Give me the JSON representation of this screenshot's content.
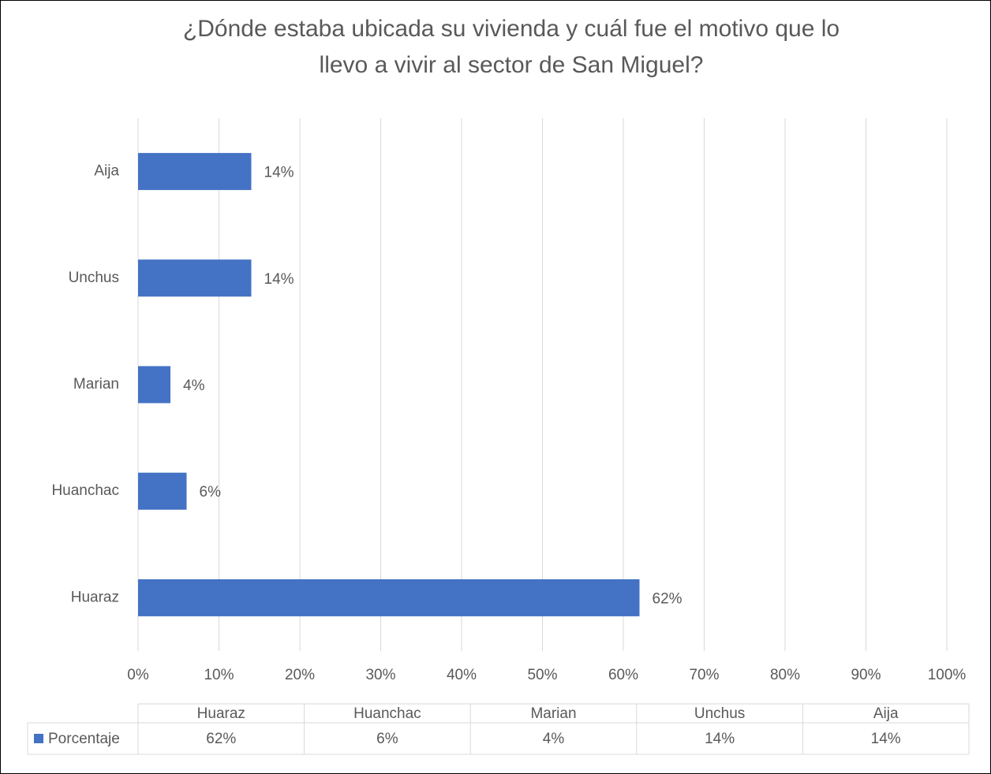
{
  "chart_data": {
    "type": "bar",
    "orientation": "horizontal",
    "title": [
      "¿Dónde estaba ubicada su vivienda y cuál fue el motivo que lo",
      "llevo a vivir al sector de San Miguel?"
    ],
    "categories": [
      "Huaraz",
      "Huanchac",
      "Marian",
      "Unchus",
      "Aija"
    ],
    "series": [
      {
        "name": "Porcentaje",
        "color": "#4472c4",
        "values": [
          62,
          6,
          4,
          14,
          14
        ],
        "value_labels": [
          "62%",
          "6%",
          "4%",
          "14%",
          "14%"
        ]
      }
    ],
    "xlim": [
      0,
      100
    ],
    "xticks": [
      {
        "value": 0,
        "label": "0%"
      },
      {
        "value": 10,
        "label": "10%"
      },
      {
        "value": 20,
        "label": "20%"
      },
      {
        "value": 30,
        "label": "30%"
      },
      {
        "value": 40,
        "label": "40%"
      },
      {
        "value": 50,
        "label": "50%"
      },
      {
        "value": 60,
        "label": "60%"
      },
      {
        "value": 70,
        "label": "70%"
      },
      {
        "value": 80,
        "label": "80%"
      },
      {
        "value": 90,
        "label": "90%"
      },
      {
        "value": 100,
        "label": "100%"
      }
    ],
    "grid": true,
    "data_table": true
  }
}
